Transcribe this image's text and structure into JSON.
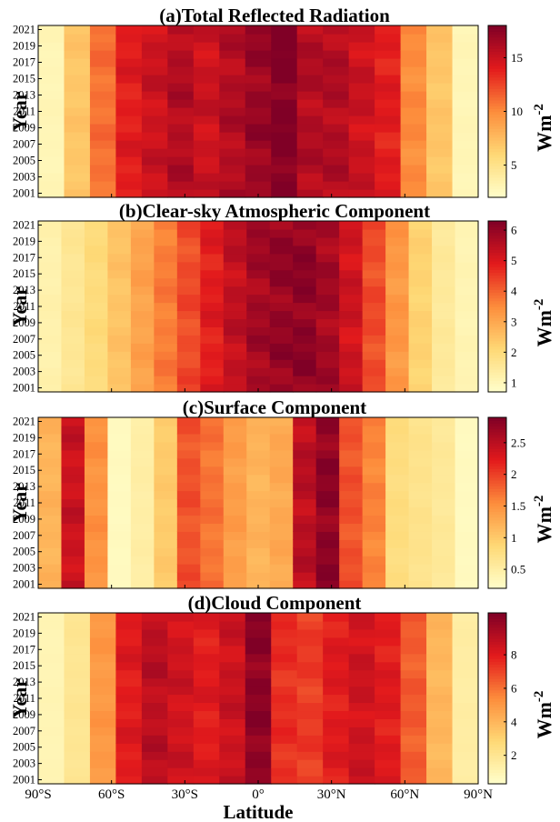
{
  "chart_data": [
    {
      "type": "heatmap",
      "title": "(a)Total Reflected Radiation",
      "ylabel": "Year",
      "xlabel": "",
      "colorbar_label": "Wm-2",
      "colorbar_ticks": [
        5,
        10,
        15
      ],
      "clim": [
        2,
        18
      ],
      "z_by_column": [
        3,
        7,
        11,
        14,
        15,
        16,
        15,
        16,
        17,
        18,
        16,
        16,
        15,
        14,
        10,
        7,
        3
      ]
    },
    {
      "type": "heatmap",
      "title": "(b)Clear-sky Atmospheric Component",
      "ylabel": "Year",
      "xlabel": "",
      "colorbar_label": "Wm-2",
      "colorbar_ticks": [
        1,
        2,
        3,
        4,
        5,
        6
      ],
      "clim": [
        0.7,
        6.3
      ],
      "z_by_column": [
        1.2,
        1.6,
        2.0,
        2.5,
        3.1,
        3.7,
        4.3,
        4.9,
        5.4,
        5.8,
        6.0,
        6.1,
        5.8,
        5.2,
        4.3,
        3.3,
        2.2,
        1.5,
        1.1
      ]
    },
    {
      "type": "heatmap",
      "title": "(c)Surface Component",
      "ylabel": "Year",
      "xlabel": "",
      "colorbar_label": "Wm-2",
      "colorbar_ticks": [
        0.5,
        1,
        1.5,
        2,
        2.5
      ],
      "clim": [
        0.2,
        2.9
      ],
      "z_by_column": [
        1.2,
        2.4,
        1.5,
        0.3,
        0.5,
        1.0,
        1.9,
        1.7,
        1.4,
        1.2,
        1.3,
        2.5,
        2.8,
        1.9,
        1.6,
        0.8,
        0.7,
        0.6,
        0.3
      ]
    },
    {
      "type": "heatmap",
      "title": "(d)Cloud Component",
      "ylabel": "Year",
      "xlabel": "Latitude",
      "colorbar_label": "Wm-2",
      "colorbar_ticks": [
        2,
        4,
        6,
        8
      ],
      "clim": [
        0.3,
        10.5
      ],
      "z_by_column": [
        1.0,
        2.0,
        5.0,
        8.0,
        9.0,
        8.5,
        8.0,
        8.6,
        10.2,
        7.5,
        7.2,
        8.0,
        8.5,
        8.0,
        6.5,
        4.0,
        1.5
      ]
    }
  ],
  "shared": {
    "y_ticks": [
      "2021",
      "2019",
      "2017",
      "2015",
      "2013",
      "2011",
      "2009",
      "2007",
      "2005",
      "2003",
      "2001"
    ],
    "x_ticks": [
      "90°S",
      "60°S",
      "30°S",
      "0°",
      "30°N",
      "60°N",
      "90°N"
    ],
    "years": [
      2001,
      2021
    ],
    "lat_range": [
      -90,
      90
    ],
    "colorscale": [
      "#ffffcc",
      "#fed976",
      "#fd8d3c",
      "#e31a1c",
      "#800026"
    ]
  }
}
